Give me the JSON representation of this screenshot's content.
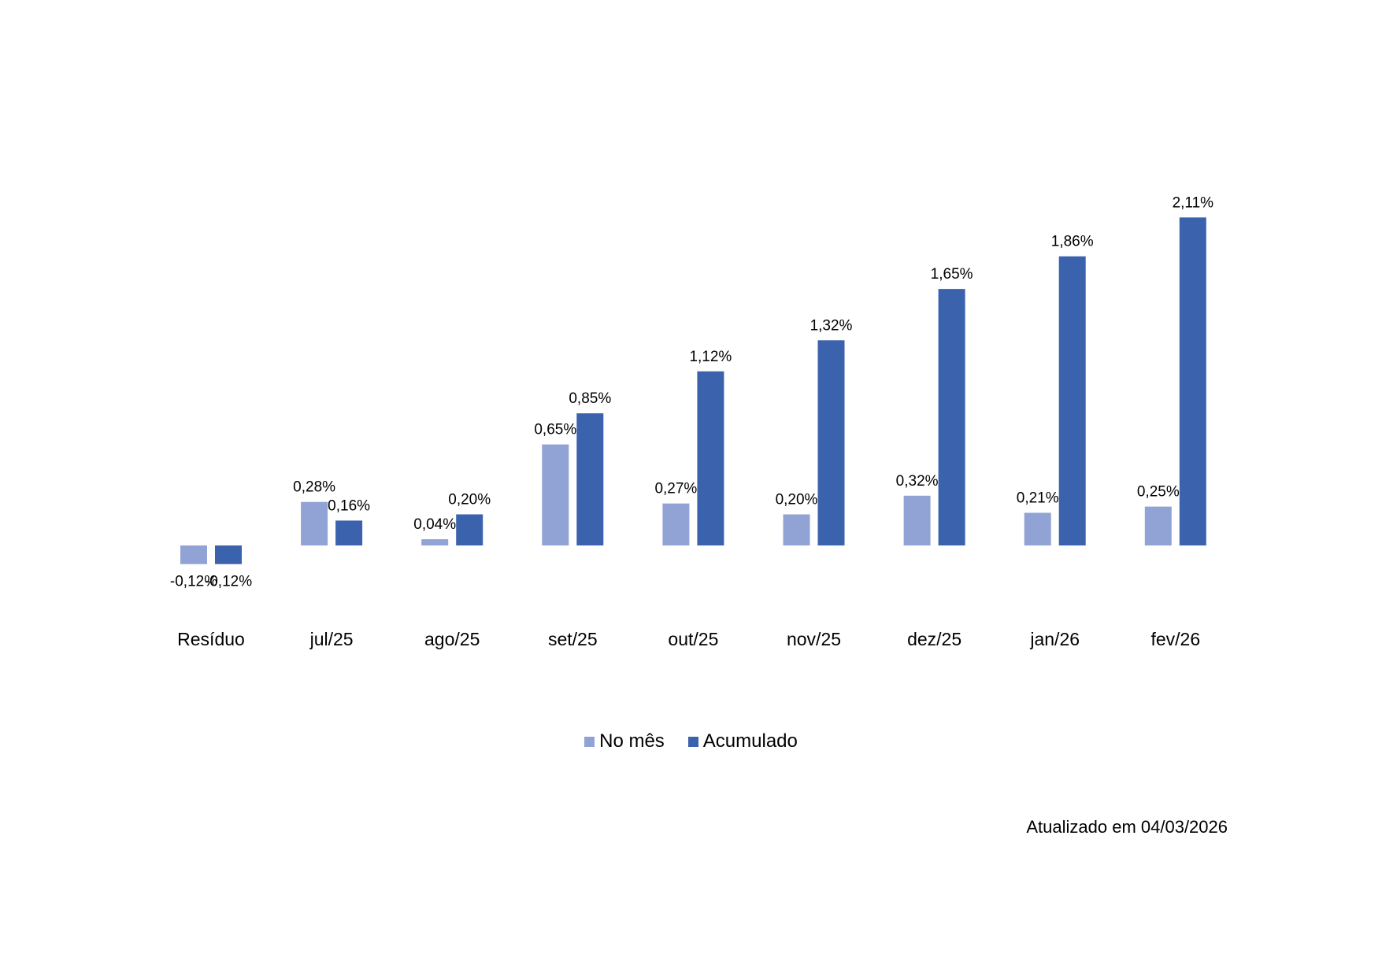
{
  "chart_data": {
    "type": "bar",
    "categories": [
      "Resíduo",
      "jul/25",
      "ago/25",
      "set/25",
      "out/25",
      "nov/25",
      "dez/25",
      "jan/26",
      "fev/26"
    ],
    "series": [
      {
        "name": "No mês",
        "color": "#91a3d4",
        "values": [
          -0.12,
          0.28,
          0.04,
          0.65,
          0.27,
          0.2,
          0.32,
          0.21,
          0.25
        ],
        "labels": [
          "-0,12%",
          "0,28%",
          "0,04%",
          "0,65%",
          "0,27%",
          "0,20%",
          "0,32%",
          "0,21%",
          "0,25%"
        ]
      },
      {
        "name": "Acumulado",
        "color": "#3b62ad",
        "values": [
          -0.12,
          0.16,
          0.2,
          0.85,
          1.12,
          1.32,
          1.65,
          1.86,
          2.11
        ],
        "labels": [
          "-0,12%",
          "0,16%",
          "0,20%",
          "0,85%",
          "1,12%",
          "1,32%",
          "1,65%",
          "1,86%",
          "2,11%"
        ]
      }
    ],
    "ylim": [
      -0.12,
      2.11
    ],
    "grid": false,
    "axes_visible": false,
    "legend_position": "bottom"
  },
  "footer": {
    "updated_text": "Atualizado em 04/03/2026"
  }
}
